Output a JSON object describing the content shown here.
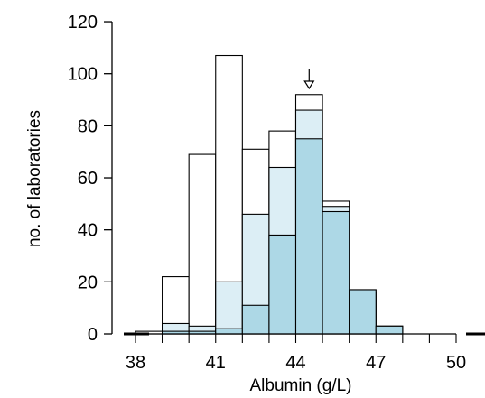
{
  "chart_data": {
    "type": "bar",
    "xlabel": "Albumin (g/L)",
    "ylabel": "no. of laboratories",
    "xlim": [
      38,
      50
    ],
    "ylim": [
      0,
      120
    ],
    "x_ticks": [
      38,
      41,
      44,
      47,
      50
    ],
    "y_ticks": [
      0,
      20,
      40,
      60,
      80,
      100,
      120
    ],
    "bin_width": 1,
    "bin_starts": [
      38,
      39,
      40,
      41,
      42,
      43,
      44,
      45,
      46,
      47,
      48,
      49
    ],
    "series": [
      {
        "values": [
          1,
          22,
          69,
          107,
          71,
          78,
          92,
          51,
          17,
          3,
          0,
          0
        ]
      },
      {
        "values": [
          0,
          4,
          3,
          20,
          46,
          64,
          86,
          49,
          16,
          3,
          0,
          0
        ]
      },
      {
        "values": [
          0,
          1,
          1,
          2,
          11,
          38,
          75,
          47,
          17,
          3,
          0,
          0
        ]
      }
    ],
    "colors": {
      "outer": "#ffffff",
      "middle": "#dceef5",
      "inner": "#add8e6",
      "stroke": "#000000"
    },
    "annotations": [
      {
        "type": "arrow",
        "x": 44.5,
        "description": "target value marker"
      }
    ],
    "grid": false
  }
}
